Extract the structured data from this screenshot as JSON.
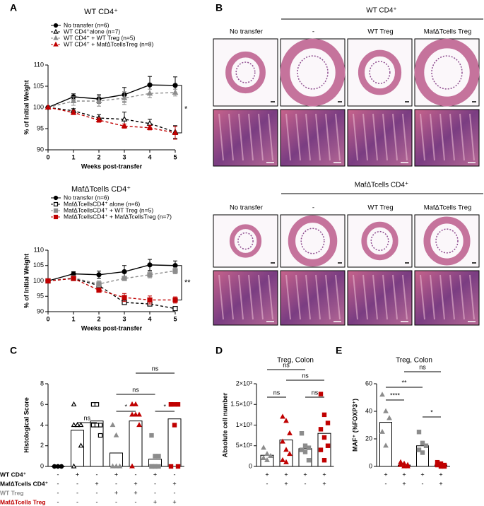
{
  "panel_labels": [
    "A",
    "B",
    "C",
    "D",
    "E"
  ],
  "chart_data": [
    {
      "type": "line",
      "title": "WT CD4⁺",
      "xlabel": "Weeks post-transfer",
      "ylabel": "% of Initial Weight",
      "x": [
        0,
        1,
        2,
        3,
        4,
        5
      ],
      "xlim": [
        0,
        5
      ],
      "xticks": [
        0,
        1,
        2,
        3,
        4,
        5
      ],
      "ylim": [
        90,
        110
      ],
      "yticks": [
        90,
        95,
        100,
        105,
        110
      ],
      "series": [
        {
          "name": "No transfer (n=6)",
          "color": "#000000",
          "marker": "circle",
          "filled": true,
          "dashed": false,
          "values": [
            100,
            102.5,
            102,
            103,
            105.3,
            105.2
          ],
          "errors": [
            0,
            0.7,
            1,
            1.7,
            2,
            2
          ]
        },
        {
          "name": "WT CD4⁺alone (n=7)",
          "color": "#000000",
          "marker": "triangle",
          "filled": false,
          "dashed": true,
          "values": [
            100,
            99.2,
            97.5,
            97.2,
            96.2,
            94.2
          ],
          "errors": [
            0,
            0.5,
            0.8,
            1.7,
            1,
            1.5
          ]
        },
        {
          "name": "WT CD4⁺ + WT Treg (n=5)",
          "color": "#8c8c8c",
          "marker": "triangle",
          "filled": true,
          "dashed": true,
          "values": [
            100,
            101.5,
            101.5,
            102.2,
            103.3,
            103.5
          ],
          "errors": [
            0,
            1,
            1.2,
            1.5,
            1,
            0.8
          ]
        },
        {
          "name": "WT CD4⁺ + MafΔTcellsTreg (n=8)",
          "color": "#c00000",
          "marker": "triangle",
          "filled": true,
          "dashed": true,
          "values": [
            100,
            98.8,
            97,
            95.6,
            95.2,
            94
          ],
          "errors": [
            0,
            0.5,
            0.5,
            0.5,
            0.5,
            1.5
          ]
        }
      ],
      "annotation": "*"
    },
    {
      "type": "line",
      "title": "MafΔTcells CD4⁺",
      "xlabel": "Weeks post-transfer",
      "ylabel": "% of Initial Weight",
      "x": [
        0,
        1,
        2,
        3,
        4,
        5
      ],
      "xlim": [
        0,
        5
      ],
      "xticks": [
        0,
        1,
        2,
        3,
        4,
        5
      ],
      "ylim": [
        90,
        110
      ],
      "yticks": [
        90,
        95,
        100,
        105,
        110
      ],
      "series": [
        {
          "name": "No transfer (n=6)",
          "color": "#000000",
          "marker": "circle",
          "filled": true,
          "dashed": false,
          "values": [
            100,
            102.3,
            102,
            103,
            105.2,
            105
          ],
          "errors": [
            0,
            0.7,
            1.2,
            2,
            1.8,
            1.5
          ]
        },
        {
          "name": "MafΔTcellsCD4⁺ alone (n=6)",
          "color": "#000000",
          "marker": "square",
          "filled": false,
          "dashed": true,
          "values": [
            100,
            100.8,
            98.5,
            93,
            92.5,
            91
          ],
          "errors": [
            0,
            0.5,
            1,
            0.5,
            0.5,
            0.5
          ]
        },
        {
          "name": "MafΔTcellsCD4⁺ + WT Treg (n=5)",
          "color": "#8c8c8c",
          "marker": "square",
          "filled": true,
          "dashed": true,
          "values": [
            100,
            101,
            99,
            100.8,
            102,
            103.3
          ],
          "errors": [
            0,
            0.5,
            1,
            0.5,
            1,
            1
          ]
        },
        {
          "name": "MafΔTcellsCD4⁺ + MafΔTcellsTreg (n=7)",
          "color": "#c00000",
          "marker": "square",
          "filled": true,
          "dashed": true,
          "values": [
            100,
            100.8,
            97,
            94.6,
            93.8,
            93.8
          ],
          "errors": [
            0,
            0.5,
            0.5,
            1.3,
            1.3,
            1
          ]
        }
      ],
      "annotation": "**"
    },
    {
      "type": "dotbar",
      "ylabel": "Histological Score",
      "ylim": [
        0,
        8
      ],
      "yticks": [
        0,
        2,
        4,
        6,
        8
      ],
      "groups": [
        {
          "color": "#000000",
          "marker": "circle",
          "filled": true,
          "mean": 0,
          "points": [
            0,
            0,
            0,
            0,
            0,
            0
          ]
        },
        {
          "color": "#000000",
          "marker": "triangle",
          "filled": false,
          "mean": 3.5,
          "points": [
            6,
            4,
            4,
            4,
            4,
            2,
            0
          ]
        },
        {
          "color": "#000000",
          "marker": "square",
          "filled": false,
          "mean": 4.4,
          "points": [
            6,
            6,
            4,
            4,
            4,
            3
          ]
        },
        {
          "color": "#8c8c8c",
          "marker": "triangle",
          "filled": true,
          "mean": 1.3,
          "points": [
            4,
            3,
            0,
            0,
            0
          ]
        },
        {
          "color": "#c00000",
          "marker": "triangle",
          "filled": true,
          "mean": 4.4,
          "points": [
            6,
            6,
            5,
            5,
            5,
            4,
            0
          ]
        },
        {
          "color": "#8c8c8c",
          "marker": "square",
          "filled": true,
          "mean": 0.7,
          "points": [
            3,
            1,
            1,
            0,
            0,
            0,
            0,
            0
          ]
        },
        {
          "color": "#c00000",
          "marker": "square",
          "filled": true,
          "mean": 4.6,
          "points": [
            6,
            6,
            6,
            6,
            4,
            0,
            0
          ]
        }
      ],
      "conditions": [
        {
          "label": "WT CD4⁺",
          "color": "#000000",
          "values": [
            "-",
            "+",
            "-",
            "+",
            "-",
            "+",
            "-"
          ]
        },
        {
          "label": "MafΔTcells CD4⁺",
          "color": "#000000",
          "values": [
            "-",
            "-",
            "+",
            "-",
            "+",
            "-",
            "+"
          ]
        },
        {
          "label": "WT Treg",
          "color": "#8c8c8c",
          "values": [
            "-",
            "-",
            "-",
            "+",
            "+",
            "-",
            "-"
          ]
        },
        {
          "label": "MafΔTcells Treg",
          "color": "#c00000",
          "values": [
            "-",
            "-",
            "-",
            "-",
            "-",
            "+",
            "+"
          ]
        }
      ],
      "annotations": [
        "ns",
        "*",
        "ns",
        "ns",
        "*"
      ]
    },
    {
      "type": "dotbar",
      "title": "Treg, Colon",
      "ylabel": "Absolute cell number",
      "ylim": [
        0,
        2000
      ],
      "yticks": [
        0,
        {
          "value": 500,
          "label": "5×10²"
        },
        {
          "value": 1000,
          "label": "1×10³"
        },
        {
          "value": 1500,
          "label": "1.5×10³"
        },
        {
          "value": 2000,
          "label": "2×10³"
        }
      ],
      "groups": [
        {
          "color": "#8c8c8c",
          "marker": "triangle",
          "filled": true,
          "mean": 270,
          "points": [
            450,
            300,
            250,
            200,
            150
          ]
        },
        {
          "color": "#c00000",
          "marker": "triangle",
          "filled": true,
          "mean": 640,
          "points": [
            1200,
            1100,
            800,
            600,
            400,
            300,
            150,
            100
          ]
        },
        {
          "color": "#8c8c8c",
          "marker": "square",
          "filled": true,
          "mean": 430,
          "points": [
            800,
            500,
            450,
            400,
            350,
            150
          ]
        },
        {
          "color": "#c00000",
          "marker": "square",
          "filled": true,
          "mean": 800,
          "points": [
            1750,
            1250,
            1050,
            900,
            700,
            500,
            400,
            150
          ]
        }
      ],
      "conditions": [
        {
          "color": "#000000",
          "values": [
            "+",
            "+",
            "+",
            "+"
          ]
        },
        {
          "color": "#000000",
          "values": [
            "-",
            "+",
            "-",
            "+"
          ]
        }
      ],
      "annotations": [
        "ns",
        "ns",
        "ns",
        "ns"
      ]
    },
    {
      "type": "dotbar",
      "title": "Treg, Colon",
      "ylabel": "MAF⁺ (%FOXP3⁺)",
      "ylim": [
        0,
        60
      ],
      "yticks": [
        0,
        20,
        40,
        60
      ],
      "groups": [
        {
          "color": "#8c8c8c",
          "marker": "triangle",
          "filled": true,
          "mean": 32,
          "points": [
            52,
            40,
            35,
            25,
            15
          ]
        },
        {
          "color": "#c00000",
          "marker": "triangle",
          "filled": true,
          "mean": 1,
          "points": [
            3,
            2,
            1,
            1,
            0,
            0
          ]
        },
        {
          "color": "#8c8c8c",
          "marker": "square",
          "filled": true,
          "mean": 15,
          "points": [
            25,
            17,
            15,
            12,
            10
          ]
        },
        {
          "color": "#c00000",
          "marker": "square",
          "filled": true,
          "mean": 1,
          "points": [
            3,
            2,
            1,
            1,
            0,
            0
          ]
        }
      ],
      "conditions": [
        {
          "color": "#000000",
          "values": [
            "+",
            "+",
            "+",
            "+"
          ]
        },
        {
          "color": "#000000",
          "values": [
            "-",
            "+",
            "-",
            "+"
          ]
        }
      ],
      "annotations": [
        "****",
        "**",
        "ns",
        "*"
      ]
    }
  ],
  "histology": {
    "sections": [
      {
        "title": "WT CD4⁺",
        "columns": [
          "No transfer",
          "-",
          "WT Treg",
          "MafΔTcells Treg"
        ]
      },
      {
        "title": "MafΔTcells CD4⁺",
        "columns": [
          "No transfer",
          "-",
          "WT Treg",
          "MafΔTcells Treg"
        ]
      }
    ]
  }
}
